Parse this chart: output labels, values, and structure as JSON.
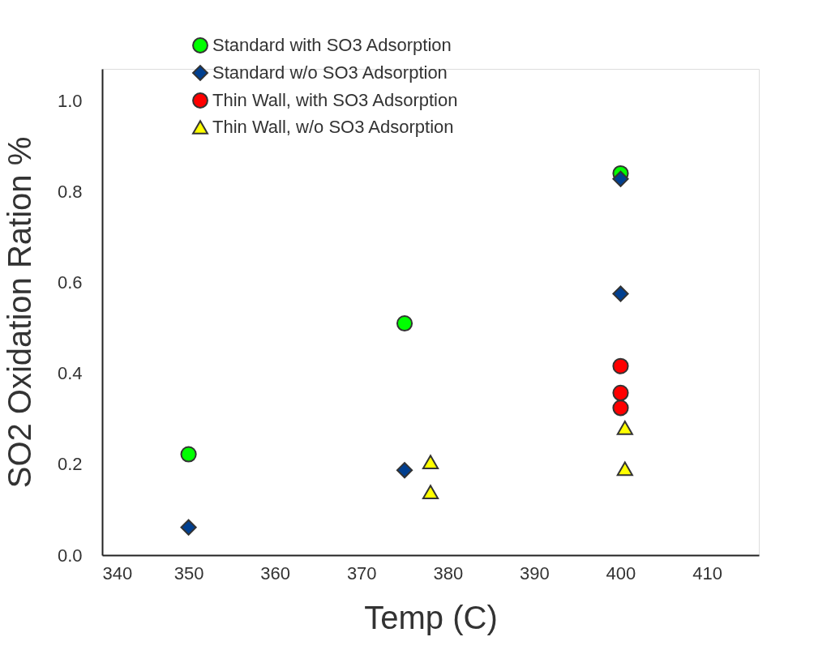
{
  "chart_data": {
    "type": "scatter",
    "xlabel": "Temp (C)",
    "ylabel": "SO2 Oxidation Ration %",
    "xlim": [
      340,
      416
    ],
    "xticks": [
      340,
      350,
      360,
      370,
      380,
      390,
      400,
      410
    ],
    "ylim": [
      0,
      1.07
    ],
    "yticks": [
      {
        "value": 0,
        "label": "0.0"
      },
      0.2,
      0.4,
      0.6,
      0.8,
      {
        "value": 1,
        "label": "1.0"
      }
    ],
    "grid": false,
    "legend": "top",
    "series": [
      {
        "name": "Standard with SO3 Adsorption",
        "color": "#00ff00",
        "marker": "circle",
        "x": [
          350,
          375,
          400
        ],
        "values": [
          0.222,
          0.51,
          0.84
        ]
      },
      {
        "name": "Standard w/o SO3 Adsorption",
        "color": "#003f8f",
        "marker": "diamond",
        "x": [
          350,
          375,
          400,
          400
        ],
        "values": [
          0.061,
          0.187,
          0.828,
          0.575
        ]
      },
      {
        "name": "Thin Wall, with SO3 Adsorption",
        "color": "#ff0000",
        "marker": "circle",
        "x": [
          400,
          400,
          400
        ],
        "values": [
          0.416,
          0.357,
          0.324
        ]
      },
      {
        "name": "Thin Wall, w/o SO3 Adsorption",
        "color": "#ffff00",
        "marker": "triangle",
        "x": [
          378,
          378,
          400.5,
          400.5
        ],
        "values": [
          0.205,
          0.139,
          0.28,
          0.19
        ]
      }
    ]
  }
}
